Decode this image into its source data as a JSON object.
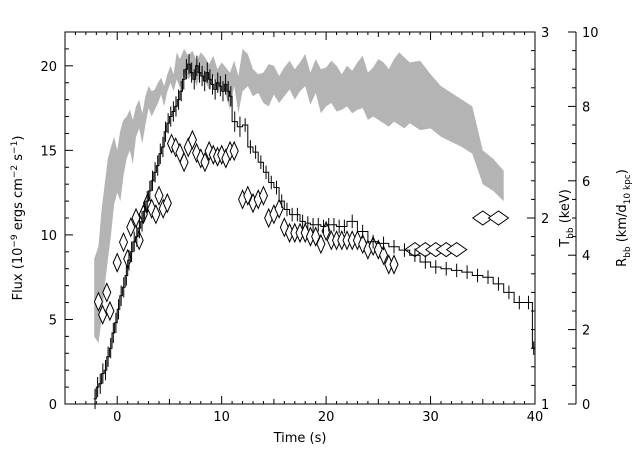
{
  "chart_data": {
    "type": "line",
    "xlabel": "Time (s)",
    "ylabel_left": {
      "text": "Flux (10",
      "exp": "−9",
      "rest": " ergs cm",
      "exp2": "−2",
      "rest2": " s",
      "exp3": "−1",
      "end": ")"
    },
    "ylabel_right1": {
      "main": "T",
      "sub": "bb",
      "rest": " (keV)"
    },
    "ylabel_right2": {
      "main": "R",
      "sub": "bb",
      "rest": " (km/d",
      "sub2": "10 kpc",
      "end": ")"
    },
    "xlim": [
      -5,
      40
    ],
    "ylim_flux": [
      0,
      22
    ],
    "ylim_temp": [
      1,
      3
    ],
    "ylim_radius": [
      0,
      10
    ],
    "x_ticks": [
      "0",
      "10",
      "20",
      "30",
      "40"
    ],
    "x_tick_values": [
      0,
      10,
      20,
      30,
      40
    ],
    "flux_ticks": [
      "0",
      "5",
      "10",
      "15",
      "20"
    ],
    "flux_tick_values": [
      0,
      5,
      10,
      15,
      20
    ],
    "temp_ticks": [
      "1",
      "2",
      "3"
    ],
    "temp_tick_values": [
      1,
      2,
      3
    ],
    "radius_ticks": [
      "0",
      "2",
      "4",
      "6",
      "8",
      "10"
    ],
    "radius_tick_values": [
      0,
      2,
      4,
      6,
      8,
      10
    ],
    "series": [
      {
        "style": "step-histogram",
        "x": [
          -2.25,
          -2.0,
          -1.75,
          -1.5,
          -1.25,
          -1.0,
          -0.75,
          -0.5,
          -0.25,
          0.0,
          0.25,
          0.5,
          0.75,
          1.0,
          1.25,
          1.5,
          1.75,
          2.0,
          2.25,
          2.5,
          2.75,
          3.0,
          3.25,
          3.5,
          3.75,
          4.0,
          4.25,
          4.5,
          4.75,
          5.0,
          5.25,
          5.5,
          5.75,
          6.0,
          6.25,
          6.5,
          6.75,
          7.0,
          7.25,
          7.5,
          7.75,
          8.0,
          8.25,
          8.5,
          8.75,
          9.0,
          9.25,
          9.5,
          9.75,
          10.0,
          10.25,
          10.5,
          10.75,
          11.0,
          11.5,
          12.0,
          12.5,
          13.0,
          13.5,
          14.0,
          14.5,
          15.0,
          15.5,
          16.0,
          16.5,
          17.0,
          17.5,
          18.0,
          18.5,
          19.0,
          19.5,
          20.0,
          20.5,
          21.0,
          21.5,
          22.0,
          23.0,
          24.0,
          25.0,
          26.0,
          27.0,
          28.0,
          29.0,
          30.0,
          31.0,
          32.0,
          33.0,
          34.0,
          35.0,
          36.0,
          37.0,
          38.0,
          39.0,
          39.75
        ],
        "y": [
          0.3,
          1.0,
          1.2,
          1.8,
          2.0,
          2.8,
          3.3,
          4.2,
          4.8,
          5.6,
          6.4,
          6.9,
          7.6,
          8.5,
          9.0,
          9.6,
          9.9,
          10.4,
          10.8,
          11.4,
          12.0,
          12.6,
          13.2,
          13.7,
          14.1,
          14.8,
          15.2,
          16.1,
          16.6,
          17.0,
          17.3,
          17.6,
          18.0,
          18.5,
          19.2,
          19.8,
          20.1,
          19.6,
          19.2,
          20.0,
          19.6,
          19.4,
          19.1,
          19.6,
          19.2,
          18.9,
          18.6,
          19.0,
          18.8,
          18.5,
          18.9,
          18.5,
          18.2,
          16.7,
          16.4,
          16.5,
          15.2,
          14.9,
          14.3,
          13.7,
          13.1,
          12.8,
          12.0,
          11.5,
          11.2,
          11.2,
          10.8,
          10.7,
          10.6,
          10.6,
          10.5,
          10.6,
          10.6,
          10.5,
          10.5,
          10.8,
          10.2,
          9.6,
          9.5,
          9.3,
          9.1,
          8.8,
          8.4,
          8.1,
          8.0,
          7.9,
          7.8,
          7.6,
          7.5,
          7.1,
          6.6,
          6.0,
          6.0,
          3.3
        ],
        "axis": "flux"
      },
      {
        "style": "shaded-band",
        "x": [
          -2.2,
          -1.8,
          -1.5,
          -1.2,
          -0.9,
          -0.6,
          -0.3,
          0.0,
          0.3,
          0.6,
          0.9,
          1.2,
          1.5,
          1.8,
          2.1,
          2.4,
          2.7,
          3.0,
          3.3,
          3.6,
          3.9,
          4.2,
          4.5,
          4.8,
          5.1,
          5.4,
          5.7,
          6.0,
          6.4,
          6.8,
          7.2,
          7.6,
          8.0,
          8.4,
          8.8,
          9.2,
          9.6,
          10.0,
          10.4,
          10.8,
          11.2,
          11.6,
          12.0,
          12.5,
          13.0,
          13.5,
          14.0,
          14.5,
          15.0,
          15.5,
          16.0,
          16.5,
          17.0,
          17.5,
          18.0,
          18.5,
          19.0,
          19.5,
          20.0,
          20.5,
          21.0,
          21.5,
          22.0,
          22.5,
          23.0,
          23.5,
          24.0,
          24.5,
          25.0,
          25.5,
          26.0,
          26.5,
          27.0,
          27.5,
          28.0,
          29.0,
          30.0,
          31.0,
          32.0,
          33.0,
          34.0,
          35.0,
          36.0,
          37.0
        ],
        "lower": [
          4.0,
          3.6,
          5.0,
          7.0,
          8.5,
          10.0,
          11.8,
          12.5,
          12.0,
          13.5,
          14.5,
          15.0,
          14.2,
          15.8,
          16.3,
          15.4,
          16.5,
          17.5,
          17.0,
          17.4,
          17.8,
          18.3,
          17.6,
          18.5,
          19.0,
          18.5,
          19.2,
          18.7,
          19.6,
          19.2,
          19.5,
          18.8,
          19.6,
          19.1,
          18.6,
          19.4,
          18.4,
          18.9,
          18.3,
          17.4,
          18.8,
          17.2,
          18.5,
          18.8,
          18.2,
          18.4,
          17.8,
          17.6,
          18.3,
          17.8,
          18.2,
          18.6,
          18.0,
          18.5,
          18.8,
          17.7,
          18.4,
          17.2,
          17.6,
          17.8,
          17.3,
          17.4,
          17.6,
          17.2,
          17.4,
          17.5,
          16.8,
          17.0,
          16.8,
          16.6,
          16.4,
          16.7,
          16.5,
          16.3,
          16.6,
          16.2,
          16.3,
          15.8,
          15.5,
          15.2,
          14.8,
          13.0,
          12.6,
          12.0
        ],
        "upper": [
          8.6,
          9.3,
          11.5,
          13.0,
          14.5,
          15.2,
          15.8,
          15.0,
          16.2,
          16.8,
          17.0,
          17.4,
          16.8,
          17.6,
          18.0,
          17.2,
          18.2,
          18.8,
          18.5,
          18.6,
          19.0,
          19.3,
          18.8,
          19.5,
          20.0,
          19.5,
          20.8,
          20.4,
          21.0,
          20.6,
          20.9,
          20.3,
          20.8,
          20.5,
          20.1,
          20.6,
          19.8,
          20.2,
          19.9,
          19.6,
          20.3,
          19.4,
          21.0,
          20.7,
          19.8,
          19.5,
          19.6,
          20.1,
          20.0,
          19.4,
          19.9,
          20.3,
          19.8,
          20.2,
          20.7,
          19.6,
          20.4,
          19.8,
          19.9,
          20.3,
          20.0,
          19.5,
          20.0,
          19.7,
          20.2,
          20.6,
          19.6,
          19.9,
          20.4,
          20.2,
          19.8,
          20.4,
          20.8,
          20.5,
          20.2,
          20.3,
          19.5,
          18.8,
          18.4,
          18.0,
          17.6,
          15.0,
          14.5,
          13.8
        ],
        "axis": "radius-scaled flux"
      },
      {
        "style": "diamond",
        "x": [
          -1.8,
          -1.4,
          -1.0,
          -0.7,
          0.0,
          0.6,
          1.0,
          1.3,
          1.8,
          2.1,
          2.5,
          2.9,
          3.3,
          3.7,
          4.0,
          4.4,
          4.8,
          5.2,
          5.6,
          6.0,
          6.4,
          6.8,
          7.2,
          7.6,
          8.0,
          8.4,
          8.8,
          9.2,
          9.6,
          10.0,
          10.4,
          10.8,
          11.2,
          12.0,
          12.5,
          13.0,
          13.5,
          14.0,
          14.5,
          15.0,
          15.5,
          16.0,
          16.5,
          17.0,
          17.5,
          18.0,
          18.5,
          19.0,
          19.5,
          20.0,
          20.5,
          21.0,
          21.5,
          22.0,
          22.5,
          23.0,
          23.5,
          24.0,
          24.5,
          25.0,
          25.5,
          26.0,
          26.5,
          28.5,
          29.5,
          30.5,
          31.5,
          32.5,
          35.0,
          36.5
        ],
        "y": [
          1.55,
          1.48,
          1.6,
          1.5,
          1.76,
          1.87,
          1.78,
          1.95,
          2.0,
          1.88,
          2.02,
          2.08,
          2.05,
          2.02,
          2.12,
          2.05,
          2.08,
          2.4,
          2.38,
          2.35,
          2.3,
          2.38,
          2.42,
          2.35,
          2.32,
          2.3,
          2.36,
          2.34,
          2.33,
          2.34,
          2.32,
          2.36,
          2.36,
          2.1,
          2.12,
          2.08,
          2.1,
          2.12,
          2.0,
          2.02,
          2.05,
          1.95,
          1.92,
          1.92,
          1.92,
          1.92,
          1.9,
          1.9,
          1.86,
          1.93,
          1.88,
          1.88,
          1.88,
          1.88,
          1.88,
          1.88,
          1.86,
          1.83,
          1.85,
          1.83,
          1.8,
          1.75,
          1.75,
          1.83,
          1.83,
          1.83,
          1.83,
          1.83,
          2.0,
          2.0
        ],
        "axis": "temp"
      }
    ]
  }
}
